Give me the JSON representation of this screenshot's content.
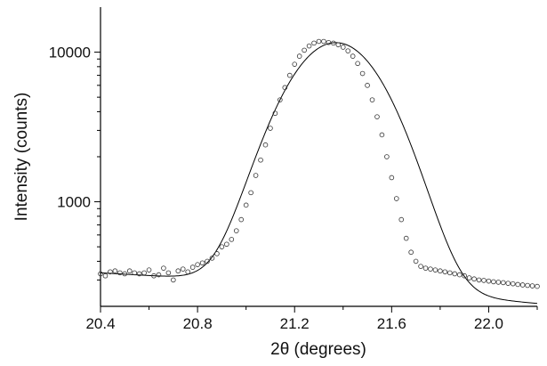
{
  "chart_data": {
    "type": "scatter",
    "xlabel": "2θ (degrees)",
    "ylabel": "Intensity (counts)",
    "x_scale": "linear",
    "y_scale": "log",
    "xlim": [
      20.4,
      22.2
    ],
    "ylim": [
      200,
      20000
    ],
    "x_ticks": [
      20.4,
      20.8,
      21.2,
      21.6,
      22.0
    ],
    "x_tick_labels": [
      "20.4",
      "20.8",
      "21.2",
      "21.6",
      "22.0"
    ],
    "y_ticks": [
      1000,
      10000
    ],
    "y_tick_labels": [
      "1000",
      "10000"
    ],
    "grid": false,
    "legend": "none",
    "series": [
      {
        "kind": "points",
        "marker": "open-circle",
        "x": [
          20.4,
          20.42,
          20.44,
          20.46,
          20.48,
          20.5,
          20.52,
          20.54,
          20.56,
          20.58,
          20.6,
          20.62,
          20.64,
          20.66,
          20.68,
          20.7,
          20.72,
          20.74,
          20.76,
          20.78,
          20.8,
          20.82,
          20.84,
          20.86,
          20.88,
          20.9,
          20.92,
          20.94,
          20.96,
          20.98,
          21.0,
          21.02,
          21.04,
          21.06,
          21.08,
          21.1,
          21.12,
          21.14,
          21.16,
          21.18,
          21.2,
          21.22,
          21.24,
          21.26,
          21.28,
          21.3,
          21.32,
          21.34,
          21.36,
          21.38,
          21.4,
          21.42,
          21.44,
          21.46,
          21.48,
          21.5,
          21.52,
          21.54,
          21.56,
          21.58,
          21.6,
          21.62,
          21.64,
          21.66,
          21.68,
          21.7,
          21.72,
          21.74,
          21.76,
          21.78,
          21.8,
          21.82,
          21.84,
          21.86,
          21.88,
          21.9,
          21.92,
          21.94,
          21.96,
          21.98,
          22.0,
          22.02,
          22.04,
          22.06,
          22.08,
          22.1,
          22.12,
          22.14,
          22.16,
          22.18,
          22.2
        ],
        "y": [
          330,
          320,
          340,
          345,
          335,
          330,
          345,
          335,
          330,
          335,
          350,
          320,
          325,
          360,
          335,
          300,
          345,
          355,
          340,
          365,
          380,
          390,
          400,
          420,
          450,
          500,
          520,
          560,
          640,
          760,
          950,
          1150,
          1500,
          1900,
          2400,
          3100,
          3900,
          4800,
          5800,
          7000,
          8300,
          9400,
          10300,
          11000,
          11500,
          11800,
          11800,
          11600,
          11500,
          11200,
          10800,
          10200,
          9400,
          8400,
          7200,
          6000,
          4800,
          3700,
          2800,
          2000,
          1450,
          1050,
          760,
          570,
          460,
          400,
          370,
          360,
          355,
          350,
          345,
          340,
          335,
          330,
          325,
          320,
          310,
          305,
          300,
          298,
          295,
          292,
          290,
          288,
          285,
          283,
          280,
          278,
          276,
          274,
          272
        ]
      },
      {
        "kind": "fit-line",
        "baseline": 335,
        "baseline_slope_per_deg": -70,
        "peak_center": 21.37,
        "peak_height": 11650,
        "peak_fwhm": 0.4
      }
    ]
  }
}
